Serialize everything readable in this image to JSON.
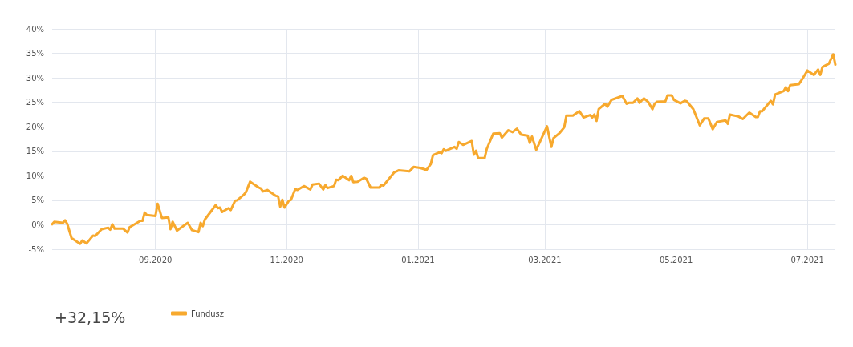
{
  "chart_data": {
    "type": "line",
    "x": [
      "2020-07-15",
      "2020-07-16",
      "2020-07-20",
      "2020-07-21",
      "2020-07-22",
      "2020-07-24",
      "2020-07-28",
      "2020-07-29",
      "2020-07-31",
      "2020-08-03",
      "2020-08-04",
      "2020-08-07",
      "2020-08-10",
      "2020-08-11",
      "2020-08-12",
      "2020-08-13",
      "2020-08-17",
      "2020-08-19",
      "2020-08-20",
      "2020-08-25",
      "2020-08-26",
      "2020-08-27",
      "2020-08-28",
      "2020-09-01",
      "2020-09-02",
      "2020-09-04",
      "2020-09-07",
      "2020-09-08",
      "2020-09-09",
      "2020-09-11",
      "2020-09-16",
      "2020-09-18",
      "2020-09-21",
      "2020-09-22",
      "2020-09-23",
      "2020-09-24",
      "2020-09-29",
      "2020-09-30",
      "2020-10-01",
      "2020-10-02",
      "2020-10-05",
      "2020-10-06",
      "2020-10-08",
      "2020-10-09",
      "2020-10-12",
      "2020-10-13",
      "2020-10-15",
      "2020-10-19",
      "2020-10-20",
      "2020-10-21",
      "2020-10-23",
      "2020-10-27",
      "2020-10-28",
      "2020-10-29",
      "2020-10-30",
      "2020-10-31",
      "2020-11-02",
      "2020-11-03",
      "2020-11-05",
      "2020-11-06",
      "2020-11-09",
      "2020-11-12",
      "2020-11-13",
      "2020-11-16",
      "2020-11-18",
      "2020-11-19",
      "2020-11-20",
      "2020-11-23",
      "2020-11-24",
      "2020-11-25",
      "2020-11-27",
      "2020-11-30",
      "2020-12-01",
      "2020-12-02",
      "2020-12-04",
      "2020-12-07",
      "2020-12-08",
      "2020-12-10",
      "2020-12-14",
      "2020-12-15",
      "2020-12-16",
      "2020-12-21",
      "2020-12-23",
      "2020-12-28",
      "2020-12-30",
      "2021-01-02",
      "2021-01-05",
      "2021-01-07",
      "2021-01-08",
      "2021-01-11",
      "2021-01-12",
      "2021-01-13",
      "2021-01-14",
      "2021-01-18",
      "2021-01-19",
      "2021-01-20",
      "2021-01-22",
      "2021-01-26",
      "2021-01-27",
      "2021-01-28",
      "2021-01-29",
      "2021-02-01",
      "2021-02-02",
      "2021-02-05",
      "2021-02-08",
      "2021-02-09",
      "2021-02-12",
      "2021-02-14",
      "2021-02-16",
      "2021-02-18",
      "2021-02-21",
      "2021-02-22",
      "2021-02-23",
      "2021-02-25",
      "2021-03-02",
      "2021-03-04",
      "2021-03-05",
      "2021-03-08",
      "2021-03-10",
      "2021-03-11",
      "2021-03-14",
      "2021-03-17",
      "2021-03-19",
      "2021-03-22",
      "2021-03-23",
      "2021-03-24",
      "2021-03-25",
      "2021-03-26",
      "2021-03-29",
      "2021-03-30",
      "2021-04-01",
      "2021-04-06",
      "2021-04-08",
      "2021-04-09",
      "2021-04-11",
      "2021-04-13",
      "2021-04-14",
      "2021-04-16",
      "2021-04-18",
      "2021-04-20",
      "2021-04-21",
      "2021-04-22",
      "2021-04-26",
      "2021-04-27",
      "2021-04-29",
      "2021-04-30",
      "2021-05-03",
      "2021-05-05",
      "2021-05-06",
      "2021-05-09",
      "2021-05-12",
      "2021-05-14",
      "2021-05-16",
      "2021-05-18",
      "2021-05-20",
      "2021-05-24",
      "2021-05-25",
      "2021-05-26",
      "2021-05-30",
      "2021-06-01",
      "2021-06-04",
      "2021-06-07",
      "2021-06-08",
      "2021-06-09",
      "2021-06-10",
      "2021-06-14",
      "2021-06-15",
      "2021-06-16",
      "2021-06-20",
      "2021-06-21",
      "2021-06-22",
      "2021-06-23",
      "2021-06-27",
      "2021-06-29",
      "2021-07-01",
      "2021-07-04",
      "2021-07-06",
      "2021-07-07",
      "2021-07-08",
      "2021-07-11",
      "2021-07-13",
      "2021-07-14"
    ],
    "series": [
      {
        "name": "Fundusz",
        "color": "#f7a92e",
        "values": [
          0.1,
          0.6,
          0.4,
          0.9,
          0.2,
          -2.7,
          -3.9,
          -3.2,
          -3.8,
          -2.2,
          -2.3,
          -0.9,
          -0.6,
          -1.0,
          0.1,
          -0.8,
          -0.8,
          -1.6,
          -0.5,
          0.8,
          0.8,
          2.5,
          2.0,
          1.8,
          4.3,
          1.4,
          1.5,
          -0.9,
          0.6,
          -1.2,
          0.4,
          -1.1,
          -1.5,
          0.4,
          -0.3,
          1.1,
          4.0,
          3.4,
          3.5,
          2.6,
          3.4,
          3.0,
          4.9,
          5.0,
          6.1,
          6.6,
          8.8,
          7.6,
          7.4,
          6.8,
          7.1,
          5.9,
          5.8,
          3.7,
          5.1,
          3.5,
          4.9,
          5.1,
          7.3,
          7.1,
          7.9,
          7.2,
          8.2,
          8.4,
          7.2,
          8.1,
          7.5,
          7.9,
          9.2,
          9.1,
          10.0,
          9.1,
          10.0,
          8.7,
          8.8,
          9.6,
          9.4,
          7.6,
          7.6,
          8.1,
          8.0,
          10.7,
          11.1,
          10.9,
          11.8,
          11.6,
          11.2,
          12.4,
          14.2,
          14.8,
          14.6,
          15.4,
          15.1,
          15.9,
          15.5,
          16.9,
          16.3,
          17.1,
          14.3,
          15.1,
          13.6,
          13.6,
          15.5,
          18.6,
          18.7,
          17.8,
          19.3,
          18.9,
          19.6,
          18.4,
          18.2,
          16.7,
          18.0,
          15.3,
          20.1,
          15.9,
          17.7,
          18.8,
          19.9,
          22.3,
          22.3,
          23.2,
          21.9,
          22.4,
          21.9,
          22.5,
          21.2,
          23.6,
          24.7,
          24.1,
          25.5,
          26.3,
          24.7,
          24.9,
          24.9,
          25.8,
          24.9,
          25.8,
          25.1,
          23.6,
          24.7,
          25.1,
          25.2,
          26.4,
          26.4,
          25.5,
          24.8,
          25.3,
          25.2,
          23.6,
          20.3,
          21.7,
          21.7,
          19.5,
          21.0,
          21.3,
          20.6,
          22.5,
          22.1,
          21.6,
          22.9,
          22.0,
          22.0,
          23.2,
          23.2,
          25.3,
          24.6,
          26.6,
          27.3,
          28.1,
          27.3,
          28.5,
          28.7,
          30.0,
          31.5,
          30.6,
          31.7,
          30.6,
          32.2,
          32.9,
          34.8,
          32.7
        ]
      }
    ],
    "xlim": [
      "2020-07-15",
      "2021-07-14"
    ],
    "xticks": [
      {
        "value": "2020-09-01",
        "label": "09.2020"
      },
      {
        "value": "2020-11-01",
        "label": "11.2020"
      },
      {
        "value": "2021-01-01",
        "label": "01.2021"
      },
      {
        "value": "2021-03-01",
        "label": "03.2021"
      },
      {
        "value": "2021-05-01",
        "label": "05.2021"
      },
      {
        "value": "2021-07-01",
        "label": "07.2021"
      }
    ],
    "ylim": [
      -5,
      40
    ],
    "yticks": [
      {
        "value": -5,
        "label": "-5%"
      },
      {
        "value": 0,
        "label": "0%"
      },
      {
        "value": 5,
        "label": "5%"
      },
      {
        "value": 10,
        "label": "10%"
      },
      {
        "value": 15,
        "label": "15%"
      },
      {
        "value": 20,
        "label": "20%"
      },
      {
        "value": 25,
        "label": "25%"
      },
      {
        "value": 30,
        "label": "30%"
      },
      {
        "value": 35,
        "label": "35%"
      },
      {
        "value": 40,
        "label": "40%"
      }
    ],
    "annotations": [
      "+32,15%"
    ],
    "grid": true,
    "legend": "bottom left",
    "marker": "none",
    "line_style": "solid"
  }
}
